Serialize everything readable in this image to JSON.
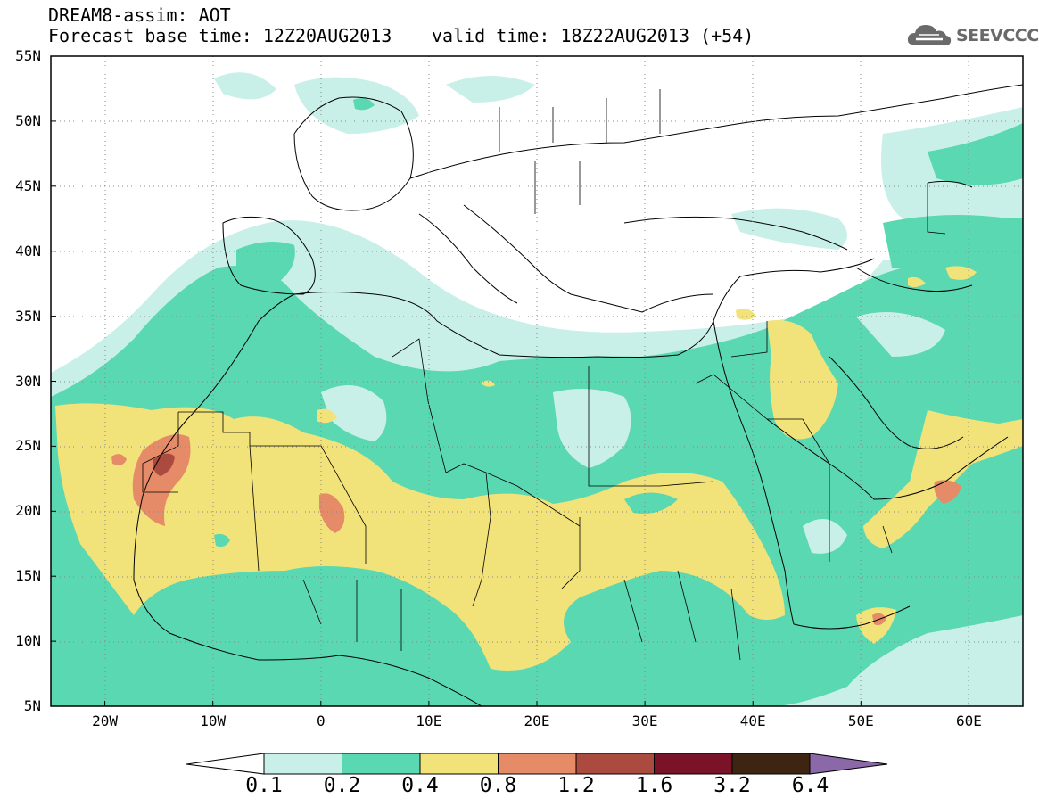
{
  "header": {
    "line1": "DREAM8-assim: AOT",
    "line2": "Forecast base time: 12Z20AUG2013",
    "line3": "valid time: 18Z22AUG2013 (+54)",
    "logo_text": "SEEVCCC"
  },
  "map": {
    "lon_range": [
      -25,
      65
    ],
    "lat_range": [
      5,
      55
    ],
    "lat_labels": [
      {
        "text": "55N",
        "lat": 55
      },
      {
        "text": "50N",
        "lat": 50
      },
      {
        "text": "45N",
        "lat": 45
      },
      {
        "text": "40N",
        "lat": 40
      },
      {
        "text": "35N",
        "lat": 35
      },
      {
        "text": "30N",
        "lat": 30
      },
      {
        "text": "25N",
        "lat": 25
      },
      {
        "text": "20N",
        "lat": 20
      },
      {
        "text": "15N",
        "lat": 15
      },
      {
        "text": "10N",
        "lat": 10
      },
      {
        "text": "5N",
        "lat": 5
      }
    ],
    "lon_labels": [
      {
        "text": "20W",
        "lon": -20
      },
      {
        "text": "10W",
        "lon": -10
      },
      {
        "text": "0",
        "lon": 0
      },
      {
        "text": "10E",
        "lon": 10
      },
      {
        "text": "20E",
        "lon": 20
      },
      {
        "text": "30E",
        "lon": 30
      },
      {
        "text": "40E",
        "lon": 40
      },
      {
        "text": "50E",
        "lon": 50
      },
      {
        "text": "60E",
        "lon": 60
      }
    ],
    "gridlines": "dotted"
  },
  "colorbar": {
    "labels": [
      "0.1",
      "0.2",
      "0.4",
      "0.8",
      "1.2",
      "1.6",
      "3.2",
      "6.4"
    ],
    "colors": [
      "#c8f0e8",
      "#5ad8b2",
      "#f2e27a",
      "#e58b68",
      "#ab4a3e",
      "#7a1228",
      "#3e2512",
      "#8b68a8"
    ]
  }
}
